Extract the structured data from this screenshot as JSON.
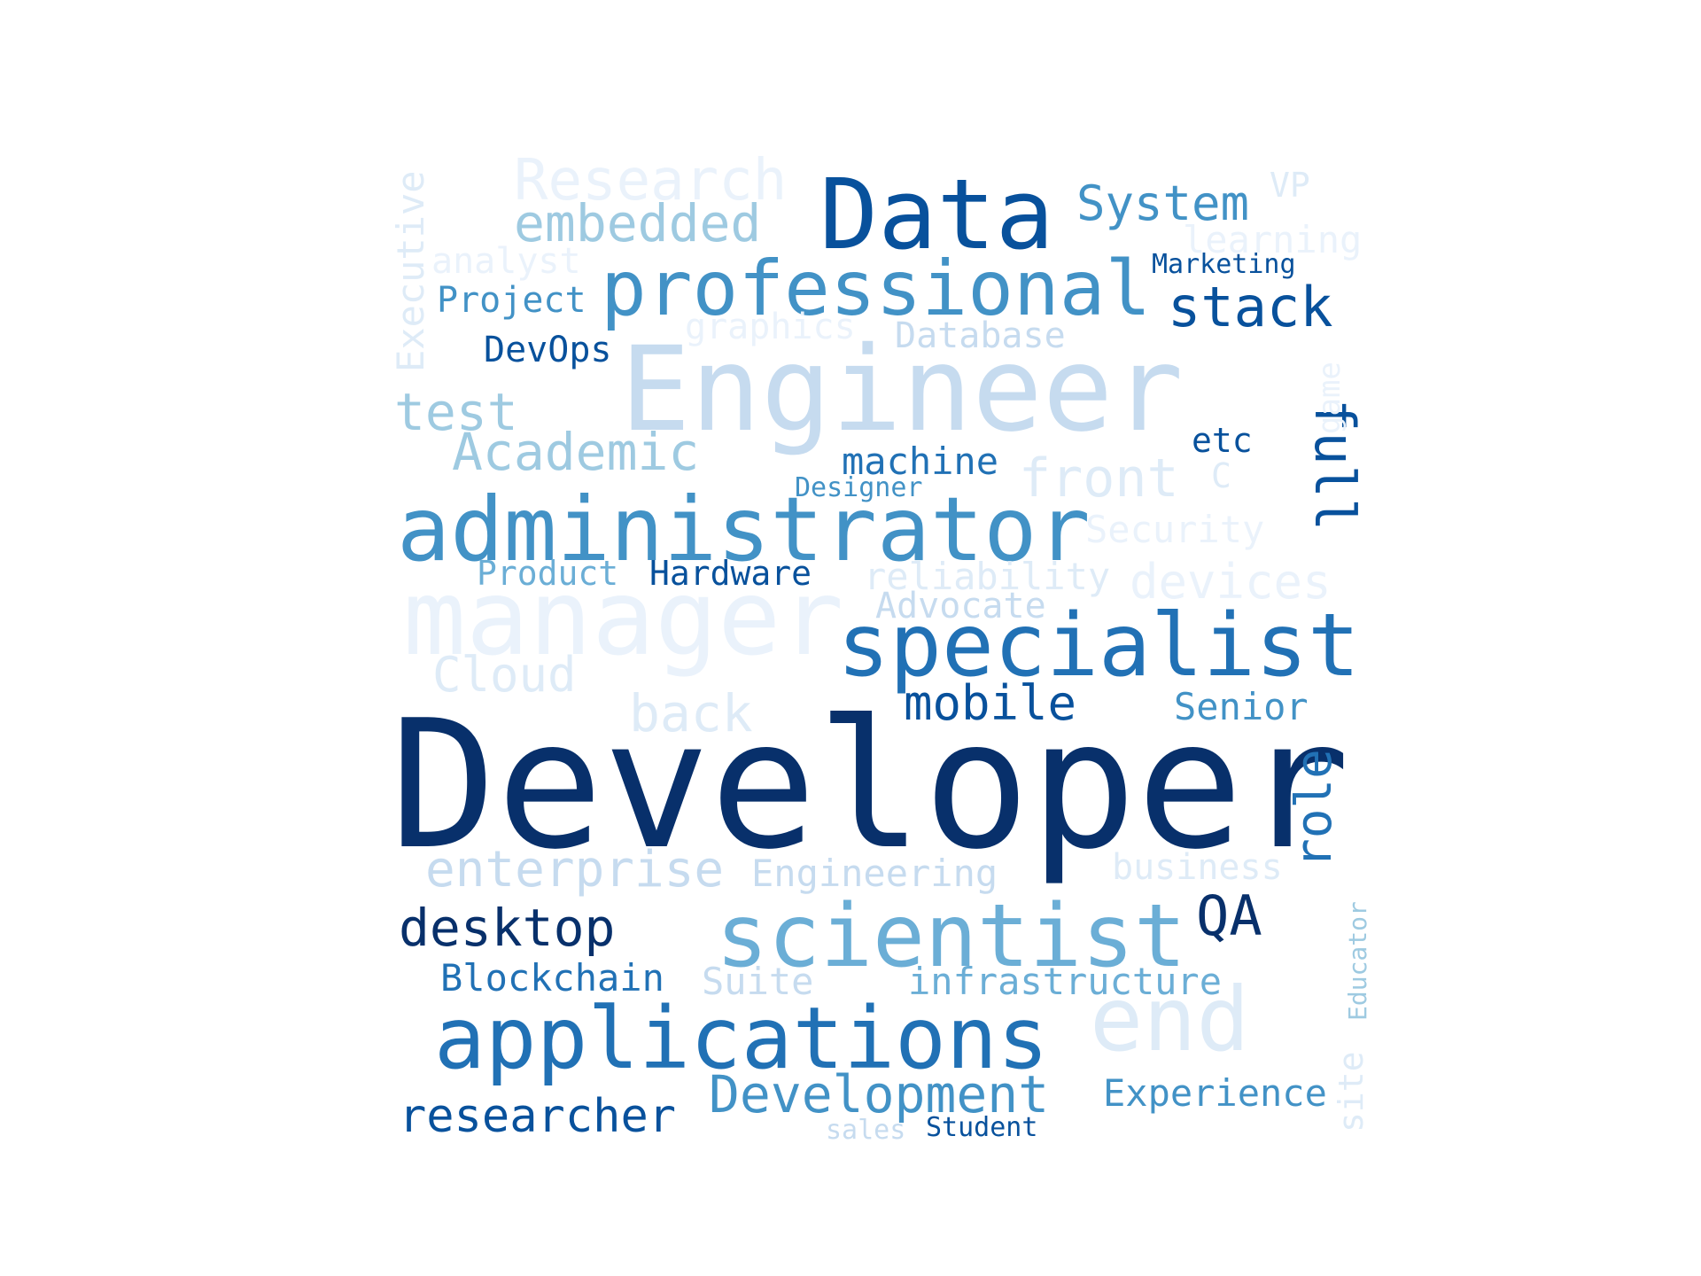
{
  "palette": {
    "c9": "#08306b",
    "c8": "#08519c",
    "c7": "#2171b5",
    "c6": "#4292c6",
    "c5": "#6baed6",
    "c4": "#9ecae1",
    "c3": "#c6dbef",
    "c2": "#deebf7",
    "c1": "#eaf2fb"
  },
  "words": [
    {
      "id": "developer",
      "text": "Developer",
      "weight": 1.0,
      "tone": "c9"
    },
    {
      "id": "engineer",
      "text": "Engineer",
      "weight": 0.64,
      "tone": "c3"
    },
    {
      "id": "manager",
      "text": "manager",
      "weight": 0.58,
      "tone": "c1"
    },
    {
      "id": "administrator",
      "text": "administrator",
      "weight": 0.55,
      "tone": "c6"
    },
    {
      "id": "data",
      "text": "Data",
      "weight": 0.56,
      "tone": "c8"
    },
    {
      "id": "specialist",
      "text": "specialist",
      "weight": 0.52,
      "tone": "c7"
    },
    {
      "id": "scientist",
      "text": "scientist",
      "weight": 0.52,
      "tone": "c5"
    },
    {
      "id": "applications",
      "text": "applications",
      "weight": 0.51,
      "tone": "c7"
    },
    {
      "id": "end",
      "text": "end",
      "weight": 0.5,
      "tone": "c2"
    },
    {
      "id": "professional",
      "text": "professional",
      "weight": 0.46,
      "tone": "c6"
    },
    {
      "id": "stack",
      "text": "stack",
      "weight": 0.36,
      "tone": "c8"
    },
    {
      "id": "full",
      "text": "full",
      "weight": 0.36,
      "tone": "c8"
    },
    {
      "id": "development",
      "text": "Development",
      "weight": 0.34,
      "tone": "c6"
    },
    {
      "id": "desktop",
      "text": "desktop",
      "weight": 0.34,
      "tone": "c9"
    },
    {
      "id": "researcher",
      "text": "researcher",
      "weight": 0.33,
      "tone": "c8"
    },
    {
      "id": "qa",
      "text": "QA",
      "weight": 0.36,
      "tone": "c9"
    },
    {
      "id": "role",
      "text": "role",
      "weight": 0.33,
      "tone": "c7"
    },
    {
      "id": "system",
      "text": "System",
      "weight": 0.3,
      "tone": "c6"
    },
    {
      "id": "embedded",
      "text": "embedded",
      "weight": 0.3,
      "tone": "c4"
    },
    {
      "id": "research",
      "text": "Research",
      "weight": 0.33,
      "tone": "c1"
    },
    {
      "id": "academic",
      "text": "Academic",
      "weight": 0.3,
      "tone": "c4"
    },
    {
      "id": "test",
      "text": "test",
      "weight": 0.3,
      "tone": "c4"
    },
    {
      "id": "front",
      "text": "front",
      "weight": 0.3,
      "tone": "c2"
    },
    {
      "id": "mobile",
      "text": "mobile",
      "weight": 0.3,
      "tone": "c8"
    },
    {
      "id": "enterprise",
      "text": "enterprise",
      "weight": 0.3,
      "tone": "c3"
    },
    {
      "id": "back",
      "text": "back",
      "weight": 0.3,
      "tone": "c2"
    },
    {
      "id": "cloud",
      "text": "Cloud",
      "weight": 0.28,
      "tone": "c2"
    },
    {
      "id": "devices",
      "text": "devices",
      "weight": 0.28,
      "tone": "c1"
    },
    {
      "id": "executive",
      "text": "Executive",
      "weight": 0.25,
      "tone": "c2"
    },
    {
      "id": "experience",
      "text": "Experience",
      "weight": 0.24,
      "tone": "c6"
    },
    {
      "id": "machine",
      "text": "machine",
      "weight": 0.24,
      "tone": "c7"
    },
    {
      "id": "blockchain",
      "text": "Blockchain",
      "weight": 0.24,
      "tone": "c7"
    },
    {
      "id": "senior",
      "text": "Senior",
      "weight": 0.24,
      "tone": "c6"
    },
    {
      "id": "project",
      "text": "Project",
      "weight": 0.24,
      "tone": "c6"
    },
    {
      "id": "devops",
      "text": "DevOps",
      "weight": 0.24,
      "tone": "c8"
    },
    {
      "id": "database",
      "text": "Database",
      "weight": 0.24,
      "tone": "c3"
    },
    {
      "id": "infrastructure",
      "text": "infrastructure",
      "weight": 0.24,
      "tone": "c5"
    },
    {
      "id": "hardware",
      "text": "Hardware",
      "weight": 0.22,
      "tone": "c8"
    },
    {
      "id": "product",
      "text": "Product",
      "weight": 0.22,
      "tone": "c5"
    },
    {
      "id": "reliability",
      "text": "reliability",
      "weight": 0.24,
      "tone": "c2"
    },
    {
      "id": "engineering",
      "text": "Engineering",
      "weight": 0.24,
      "tone": "c3"
    },
    {
      "id": "business",
      "text": "business",
      "weight": 0.24,
      "tone": "c2"
    },
    {
      "id": "security",
      "text": "Security",
      "weight": 0.24,
      "tone": "c1"
    },
    {
      "id": "advocate",
      "text": "Advocate",
      "weight": 0.24,
      "tone": "c3"
    },
    {
      "id": "suite",
      "text": "Suite",
      "weight": 0.24,
      "tone": "c3"
    },
    {
      "id": "graphics",
      "text": "graphics",
      "weight": 0.24,
      "tone": "c1"
    },
    {
      "id": "analyst",
      "text": "analyst",
      "weight": 0.24,
      "tone": "c1"
    },
    {
      "id": "learning",
      "text": "learning",
      "weight": 0.24,
      "tone": "c1"
    },
    {
      "id": "etc",
      "text": "etc",
      "weight": 0.22,
      "tone": "c8"
    },
    {
      "id": "c",
      "text": "C",
      "weight": 0.22,
      "tone": "c2"
    },
    {
      "id": "vp",
      "text": "VP",
      "weight": 0.22,
      "tone": "c2"
    },
    {
      "id": "site",
      "text": "site",
      "weight": 0.22,
      "tone": "c2"
    },
    {
      "id": "game",
      "text": "game",
      "weight": 0.2,
      "tone": "c1"
    },
    {
      "id": "marketing",
      "text": "Marketing",
      "weight": 0.18,
      "tone": "c8"
    },
    {
      "id": "designer",
      "text": "Designer",
      "weight": 0.18,
      "tone": "c6"
    },
    {
      "id": "educator",
      "text": "Educator",
      "weight": 0.18,
      "tone": "c4"
    },
    {
      "id": "student",
      "text": "Student",
      "weight": 0.18,
      "tone": "c8"
    },
    {
      "id": "sales",
      "text": "sales",
      "weight": 0.18,
      "tone": "c3"
    }
  ]
}
